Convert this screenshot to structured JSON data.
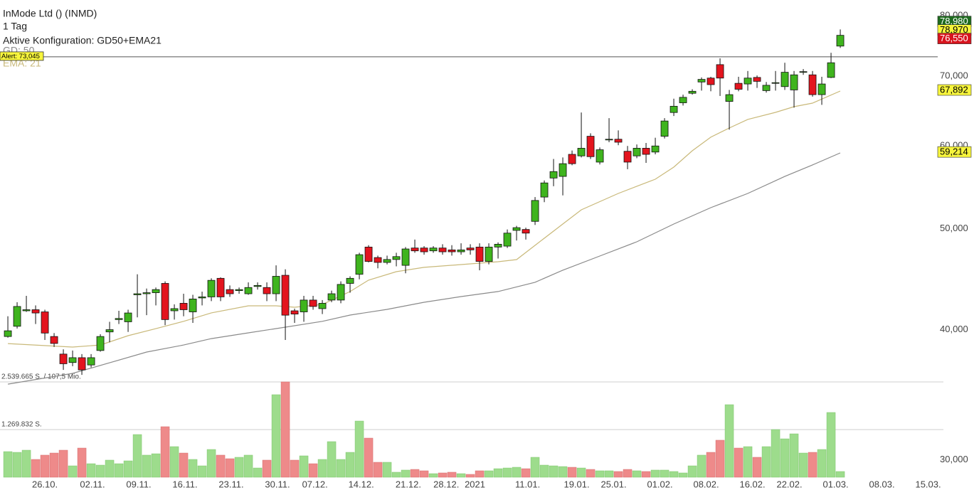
{
  "chart_data": {
    "type": "candlestick",
    "title": "InMode Ltd () (INMD)",
    "period": "1 Tag",
    "config": "Aktive Konfiguration: GD50+EMA21",
    "log_scale": true,
    "grid": false,
    "ylim": [
      28880,
      82810
    ],
    "yticks": [
      {
        "value": 80000,
        "label": "80,000"
      },
      {
        "value": 70000,
        "label": "70,000"
      },
      {
        "value": 60000,
        "label": "60,000"
      },
      {
        "value": 50000,
        "label": "50,000"
      },
      {
        "value": 40000,
        "label": "40,000"
      },
      {
        "value": 30000,
        "label": "30,000"
      }
    ],
    "xlim": [
      -0.85,
      101.15
    ],
    "xticks": [
      {
        "value": 4,
        "label": "26.10."
      },
      {
        "value": 9.15,
        "label": "02.11."
      },
      {
        "value": 14.15,
        "label": "09.11."
      },
      {
        "value": 19.15,
        "label": "16.11."
      },
      {
        "value": 24.15,
        "label": "23.11."
      },
      {
        "value": 29.15,
        "label": "30.11."
      },
      {
        "value": 33.2,
        "label": "07.12."
      },
      {
        "value": 38.2,
        "label": "14.12."
      },
      {
        "value": 43.3,
        "label": "21.12."
      },
      {
        "value": 47.4,
        "label": "28.12."
      },
      {
        "value": 50.5,
        "label": "2021"
      },
      {
        "value": 56.2,
        "label": "11.01."
      },
      {
        "value": 61.5,
        "label": "19.01."
      },
      {
        "value": 65.5,
        "label": "25.01."
      },
      {
        "value": 70.5,
        "label": "01.02."
      },
      {
        "value": 75.5,
        "label": "08.02."
      },
      {
        "value": 80.5,
        "label": "16.02."
      },
      {
        "value": 84.5,
        "label": "22.02."
      },
      {
        "value": 89.5,
        "label": "01.03."
      },
      {
        "value": 94.5,
        "label": "08.03."
      },
      {
        "value": 99.5,
        "label": "15.03."
      }
    ],
    "up_color": "#3fb41e",
    "down_color": "#e3141e",
    "volume_up_color": "#9ddc8c",
    "volume_down_color": "#ee8a8a",
    "candles": [
      [
        39400,
        41200,
        39300,
        39900
      ],
      [
        40300,
        42500,
        40100,
        42100
      ],
      [
        41700,
        43100,
        41600,
        41800
      ],
      [
        41800,
        42200,
        40500,
        41500
      ],
      [
        41600,
        41800,
        39100,
        39700
      ],
      [
        39400,
        39700,
        38500,
        38800
      ],
      [
        37900,
        38300,
        36600,
        37100
      ],
      [
        37200,
        38200,
        36900,
        37600
      ],
      [
        37600,
        37900,
        36200,
        36600
      ],
      [
        37000,
        37900,
        36800,
        37600
      ],
      [
        38200,
        39600,
        38100,
        39400
      ],
      [
        39800,
        40700,
        38900,
        40000
      ],
      [
        40900,
        41700,
        40500,
        41000
      ],
      [
        40700,
        41800,
        39800,
        41500
      ],
      [
        43200,
        45200,
        41100,
        43300
      ],
      [
        43300,
        43800,
        41300,
        43400
      ],
      [
        43400,
        43900,
        42200,
        43700
      ],
      [
        44300,
        44500,
        40400,
        40900
      ],
      [
        41700,
        42300,
        40900,
        41900
      ],
      [
        42400,
        43300,
        41200,
        41800
      ],
      [
        41600,
        43200,
        40600,
        42800
      ],
      [
        42900,
        43500,
        42200,
        43000
      ],
      [
        43000,
        44800,
        42600,
        44600
      ],
      [
        44800,
        44900,
        42600,
        43000
      ],
      [
        43700,
        44100,
        43000,
        43300
      ],
      [
        43600,
        43900,
        43300,
        43700
      ],
      [
        43300,
        44400,
        43200,
        43900
      ],
      [
        44000,
        44400,
        43700,
        44100
      ],
      [
        43900,
        44400,
        42600,
        43300
      ],
      [
        43300,
        46100,
        42600,
        45000
      ],
      [
        45100,
        45700,
        39100,
        41300
      ],
      [
        41700,
        41900,
        40600,
        41400
      ],
      [
        41600,
        43100,
        40700,
        42700
      ],
      [
        42700,
        43100,
        41800,
        42100
      ],
      [
        41900,
        42700,
        41400,
        42400
      ],
      [
        42700,
        43600,
        42500,
        43300
      ],
      [
        42700,
        44500,
        42400,
        44200
      ],
      [
        44300,
        45000,
        43400,
        44800
      ],
      [
        45200,
        47400,
        44700,
        47200
      ],
      [
        48000,
        48200,
        46400,
        46500
      ],
      [
        46900,
        47100,
        45800,
        46400
      ],
      [
        46400,
        47100,
        46200,
        46700
      ],
      [
        46700,
        47400,
        46000,
        47000
      ],
      [
        46100,
        48000,
        45300,
        47800
      ],
      [
        47900,
        48800,
        47400,
        47600
      ],
      [
        47900,
        48100,
        47200,
        47500
      ],
      [
        47600,
        48100,
        47400,
        47900
      ],
      [
        47900,
        48300,
        47200,
        47500
      ],
      [
        47700,
        48200,
        47100,
        47500
      ],
      [
        47500,
        48400,
        47200,
        47700
      ],
      [
        47900,
        48300,
        47200,
        47700
      ],
      [
        48000,
        48400,
        45600,
        46500
      ],
      [
        46500,
        48400,
        46200,
        48000
      ],
      [
        48000,
        48500,
        46800,
        48300
      ],
      [
        48100,
        49900,
        47900,
        49500
      ],
      [
        49800,
        50300,
        48700,
        50100
      ],
      [
        49900,
        50100,
        48800,
        49500
      ],
      [
        50800,
        53600,
        50400,
        53200
      ],
      [
        53600,
        55600,
        53000,
        55300
      ],
      [
        55900,
        58300,
        54900,
        56700
      ],
      [
        56100,
        58500,
        53800,
        57700
      ],
      [
        58900,
        59400,
        57500,
        57700
      ],
      [
        58700,
        64600,
        58500,
        59700
      ],
      [
        61300,
        61700,
        58300,
        58600
      ],
      [
        57900,
        59800,
        57600,
        59500
      ],
      [
        60800,
        63800,
        60500,
        60900
      ],
      [
        60900,
        62100,
        60100,
        60500
      ],
      [
        59300,
        60000,
        57000,
        57900
      ],
      [
        58700,
        60200,
        58400,
        59700
      ],
      [
        59700,
        60400,
        57800,
        58900
      ],
      [
        59200,
        61100,
        58900,
        60000
      ],
      [
        61300,
        63800,
        61000,
        63400
      ],
      [
        64600,
        66600,
        64100,
        65500
      ],
      [
        66000,
        67200,
        65600,
        66800
      ],
      [
        67400,
        68000,
        67200,
        67700
      ],
      [
        69100,
        69800,
        67800,
        69500
      ],
      [
        69700,
        69900,
        67700,
        68700
      ],
      [
        71800,
        72800,
        67000,
        69700
      ],
      [
        66200,
        67900,
        62200,
        67200
      ],
      [
        68900,
        69900,
        67700,
        68000
      ],
      [
        68800,
        70800,
        67800,
        69700
      ],
      [
        69800,
        70100,
        68200,
        69200
      ],
      [
        67800,
        69100,
        67500,
        68600
      ],
      [
        68900,
        70800,
        67800,
        69000
      ],
      [
        68400,
        72100,
        67900,
        70600
      ],
      [
        67900,
        70800,
        65300,
        70200
      ],
      [
        70600,
        71100,
        70200,
        70700
      ],
      [
        70200,
        70800,
        66900,
        67200
      ],
      [
        67200,
        69900,
        65700,
        68800
      ],
      [
        69800,
        73700,
        69700,
        72100
      ],
      [
        74800,
        77600,
        74500,
        76600
      ]
    ],
    "volume": [
      682000,
      663000,
      720000,
      474000,
      588000,
      644000,
      720000,
      303000,
      777000,
      360000,
      322000,
      455000,
      360000,
      436000,
      1137000,
      588000,
      625000,
      1346000,
      815000,
      644000,
      474000,
      303000,
      739000,
      588000,
      493000,
      531000,
      588000,
      246000,
      455000,
      2199000,
      2540000,
      455000,
      569000,
      360000,
      474000,
      948000,
      474000,
      663000,
      1497000,
      1042000,
      398000,
      398000,
      133000,
      190000,
      208000,
      171000,
      95000,
      114000,
      133000,
      95000,
      76000,
      171000,
      171000,
      227000,
      246000,
      265000,
      227000,
      531000,
      322000,
      303000,
      284000,
      265000,
      246000,
      208000,
      171000,
      171000,
      152000,
      208000,
      171000,
      152000,
      190000,
      190000,
      152000,
      114000,
      303000,
      588000,
      663000,
      986000,
      1933000,
      777000,
      815000,
      531000,
      815000,
      1270000,
      1023000,
      1156000,
      644000,
      663000,
      739000,
      1725000,
      152000
    ],
    "vlim": [
      0,
      2539665
    ],
    "vticks": [
      {
        "value": 1269832,
        "label": "1.269.832 S."
      },
      {
        "value": 2539665,
        "label": "2.539.665 S. / 107,5 Mio."
      }
    ],
    "series": [
      {
        "name": "GD: 50",
        "color": "#8a8a8a",
        "x": [
          0,
          7,
          11,
          15,
          19,
          22,
          26,
          30,
          34,
          37,
          41,
          45,
          49,
          53,
          57,
          60,
          64,
          68,
          72,
          76,
          80,
          84,
          87,
          90
        ],
        "values": [
          35470,
          36320,
          37180,
          38070,
          38670,
          39220,
          39720,
          40220,
          40740,
          41310,
          41830,
          42490,
          43030,
          43510,
          44410,
          45610,
          47060,
          48560,
          50500,
          52360,
          54030,
          56100,
          57540,
          59090
        ]
      },
      {
        "name": "EMA: 21",
        "color": "#c9b97a",
        "x": [
          0,
          7,
          10,
          13,
          16,
          19,
          22,
          26,
          29,
          31,
          34,
          37,
          39,
          42,
          45,
          49,
          53,
          55,
          57,
          60,
          62,
          66,
          68,
          70,
          72,
          74,
          76,
          78,
          80,
          83,
          85,
          87,
          90
        ],
        "values": [
          38790,
          38490,
          38670,
          39470,
          40090,
          40740,
          41510,
          42160,
          42160,
          42030,
          42290,
          43510,
          44620,
          45460,
          45900,
          46180,
          46470,
          46690,
          48180,
          50500,
          52110,
          54030,
          54890,
          55750,
          57260,
          59370,
          61170,
          62430,
          63620,
          64620,
          65440,
          65950,
          67740
        ]
      }
    ],
    "alert": {
      "value": 73045,
      "label": "Alert: 73,045"
    },
    "price_labels": [
      {
        "value": 78980,
        "label": "78,980",
        "color": "#1f6b1f",
        "text_color": "#ffffff"
      },
      {
        "value": 78970,
        "label": "78,970",
        "color": "#f7f53c",
        "text_color": "#000000"
      },
      {
        "value": 76550,
        "label": "76,550",
        "color": "#d8141e",
        "text_color": "#ffffff"
      },
      {
        "value": 67892,
        "label": "67,892",
        "color": "#f7f53c",
        "text_color": "#000000"
      },
      {
        "value": 59214,
        "label": "59,214",
        "color": "#f7f53c",
        "text_color": "#000000"
      }
    ]
  }
}
